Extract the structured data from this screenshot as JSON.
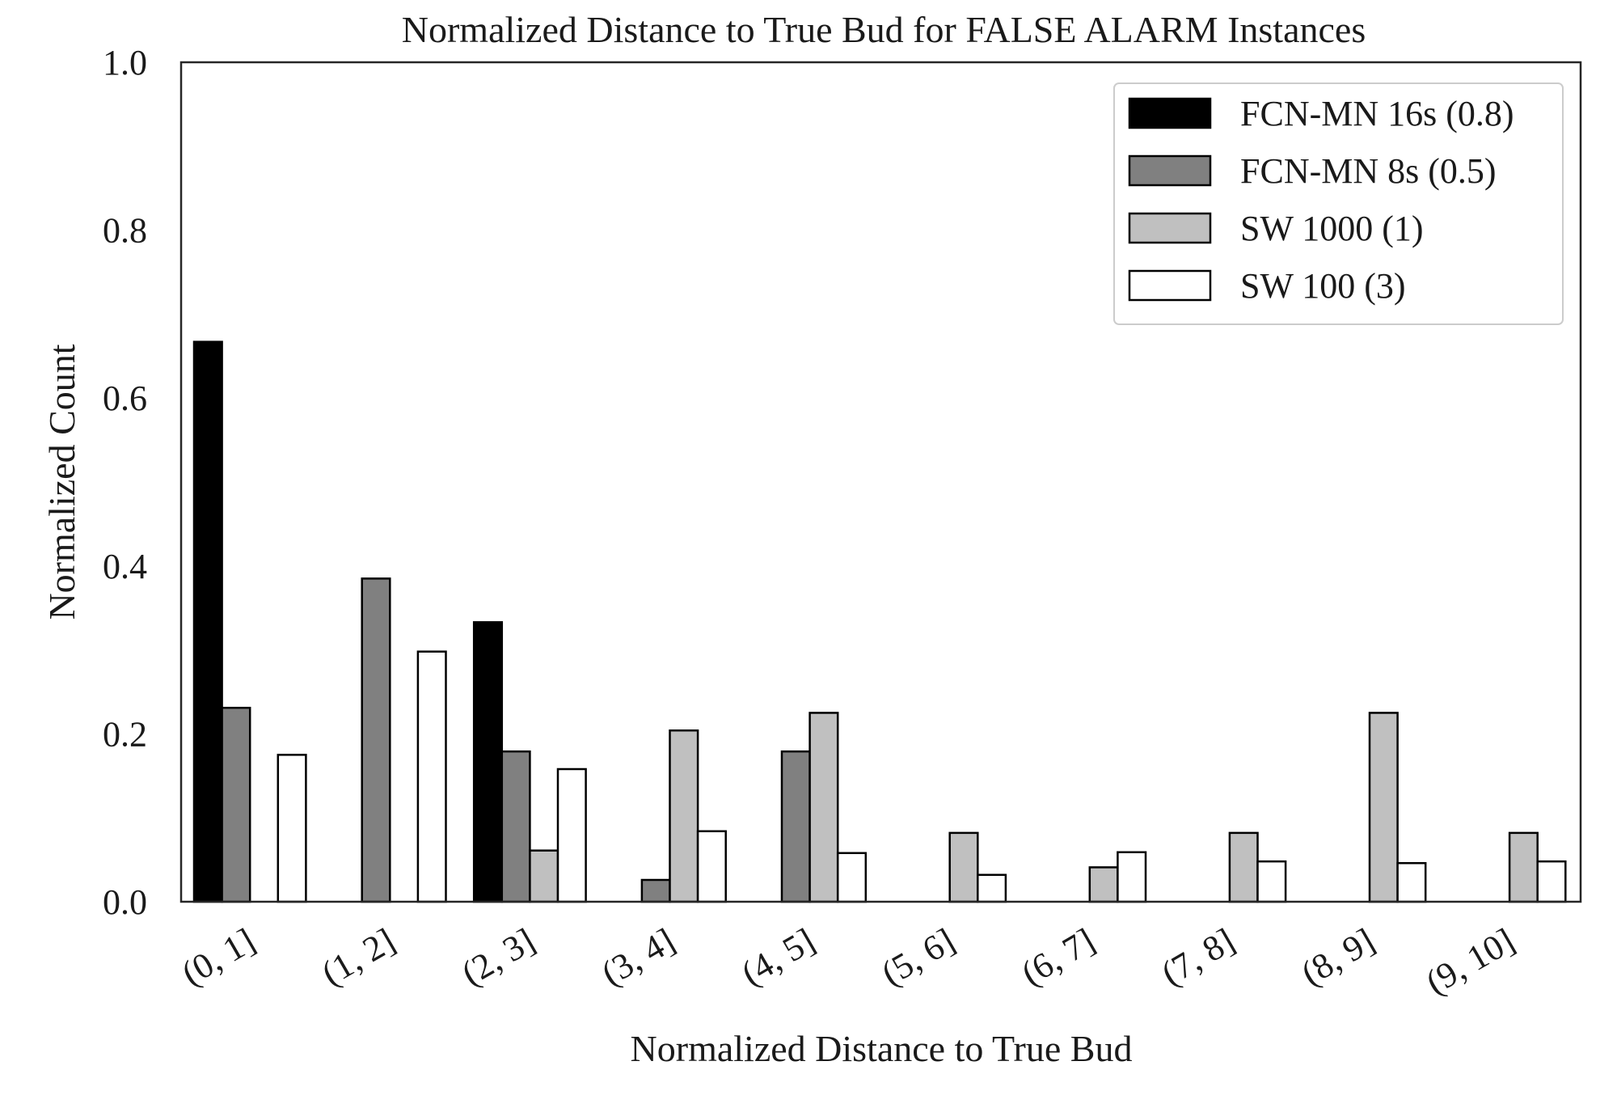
{
  "chart_data": {
    "type": "bar",
    "title": "Normalized Distance to True Bud for FALSE ALARM Instances",
    "xlabel": "Normalized Distance to True Bud",
    "ylabel": "Normalized Count",
    "ylim": [
      0,
      1.0
    ],
    "yticks": [
      "0.0",
      "0.2",
      "0.4",
      "0.6",
      "0.8",
      "1.0"
    ],
    "grid": false,
    "legend_position": "top-right",
    "categories": [
      "(0, 1]",
      "(1, 2]",
      "(2, 3]",
      "(3, 4]",
      "(4, 5]",
      "(5, 6]",
      "(6, 7]",
      "(7, 8]",
      "(8, 9]",
      "(9, 10]"
    ],
    "series": [
      {
        "name": "FCN-MN 16s (0.8)",
        "color": "#000000",
        "values": [
          0.667,
          0.0,
          0.333,
          0.0,
          0.0,
          0.0,
          0.0,
          0.0,
          0.0,
          0.0
        ]
      },
      {
        "name": "FCN-MN 8s (0.5)",
        "color": "#808080",
        "values": [
          0.231,
          0.385,
          0.179,
          0.026,
          0.179,
          0.0,
          0.0,
          0.0,
          0.0,
          0.0
        ]
      },
      {
        "name": "SW 1000 (1)",
        "color": "#c0c0c0",
        "values": [
          0.0,
          0.0,
          0.061,
          0.204,
          0.225,
          0.082,
          0.041,
          0.082,
          0.225,
          0.082
        ]
      },
      {
        "name": "SW 100 (3)",
        "color": "#ffffff",
        "values": [
          0.175,
          0.298,
          0.158,
          0.084,
          0.058,
          0.032,
          0.059,
          0.048,
          0.046,
          0.048
        ]
      }
    ]
  }
}
